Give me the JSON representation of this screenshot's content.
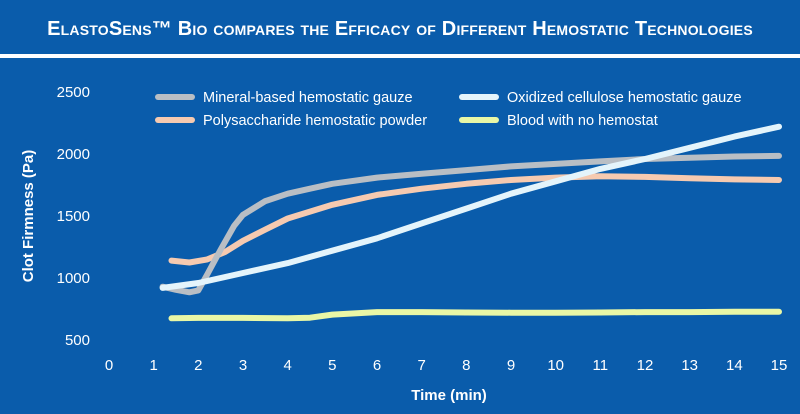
{
  "title": "ElastoSens™ Bio compares the Efficacy of Different Hemostatic Technologies",
  "chart_data": {
    "type": "line",
    "title": "ElastoSens™ Bio compares the Efficacy of Different Hemostatic Technologies",
    "xlabel": "Time (min)",
    "ylabel": "Clot Firmness (Pa)",
    "xlim": [
      0,
      15
    ],
    "ylim": [
      500,
      2500
    ],
    "x_ticks": [
      0,
      1,
      2,
      3,
      4,
      5,
      6,
      7,
      8,
      9,
      10,
      11,
      12,
      13,
      14,
      15
    ],
    "y_ticks": [
      500,
      1000,
      1500,
      2000,
      2500
    ],
    "grid": false,
    "legend_position": "top",
    "series": [
      {
        "name": "Mineral-based hemostatic gauze",
        "color": "#b9bec4",
        "points": [
          [
            1.2,
            930
          ],
          [
            1.5,
            905
          ],
          [
            1.8,
            885
          ],
          [
            2.0,
            900
          ],
          [
            2.2,
            1030
          ],
          [
            2.5,
            1230
          ],
          [
            2.8,
            1420
          ],
          [
            3.0,
            1510
          ],
          [
            3.5,
            1620
          ],
          [
            4.0,
            1680
          ],
          [
            4.5,
            1720
          ],
          [
            5.0,
            1760
          ],
          [
            6.0,
            1810
          ],
          [
            7.0,
            1840
          ],
          [
            8.0,
            1870
          ],
          [
            9.0,
            1900
          ],
          [
            10.0,
            1920
          ],
          [
            11.0,
            1940
          ],
          [
            12.0,
            1960
          ],
          [
            13.0,
            1970
          ],
          [
            14.0,
            1980
          ],
          [
            15.0,
            1985
          ]
        ]
      },
      {
        "name": "Oxidized cellulose hemostatic gauze",
        "color": "#e4f4fb",
        "points": [
          [
            1.2,
            920
          ],
          [
            2.0,
            960
          ],
          [
            3.0,
            1040
          ],
          [
            4.0,
            1120
          ],
          [
            5.0,
            1220
          ],
          [
            6.0,
            1320
          ],
          [
            7.0,
            1440
          ],
          [
            8.0,
            1560
          ],
          [
            9.0,
            1680
          ],
          [
            10.0,
            1780
          ],
          [
            11.0,
            1880
          ],
          [
            12.0,
            1960
          ],
          [
            13.0,
            2050
          ],
          [
            14.0,
            2140
          ],
          [
            15.0,
            2220
          ]
        ]
      },
      {
        "name": "Polysaccharide hemostatic powder",
        "color": "#f6cab0",
        "points": [
          [
            1.4,
            1140
          ],
          [
            1.8,
            1125
          ],
          [
            2.2,
            1150
          ],
          [
            2.6,
            1210
          ],
          [
            3.0,
            1300
          ],
          [
            3.5,
            1390
          ],
          [
            4.0,
            1480
          ],
          [
            5.0,
            1590
          ],
          [
            6.0,
            1670
          ],
          [
            7.0,
            1720
          ],
          [
            8.0,
            1760
          ],
          [
            9.0,
            1790
          ],
          [
            10.0,
            1810
          ],
          [
            11.0,
            1820
          ],
          [
            12.0,
            1815
          ],
          [
            13.0,
            1805
          ],
          [
            14.0,
            1795
          ],
          [
            15.0,
            1790
          ]
        ]
      },
      {
        "name": "Blood with no hemostat",
        "color": "#e9f7a6",
        "points": [
          [
            1.4,
            675
          ],
          [
            2.0,
            678
          ],
          [
            3.0,
            678
          ],
          [
            4.0,
            675
          ],
          [
            4.5,
            680
          ],
          [
            5.0,
            705
          ],
          [
            6.0,
            725
          ],
          [
            7.0,
            725
          ],
          [
            8.0,
            722
          ],
          [
            9.0,
            720
          ],
          [
            10.0,
            720
          ],
          [
            11.0,
            722
          ],
          [
            12.0,
            725
          ],
          [
            13.0,
            725
          ],
          [
            14.0,
            728
          ],
          [
            15.0,
            728
          ]
        ]
      }
    ]
  }
}
